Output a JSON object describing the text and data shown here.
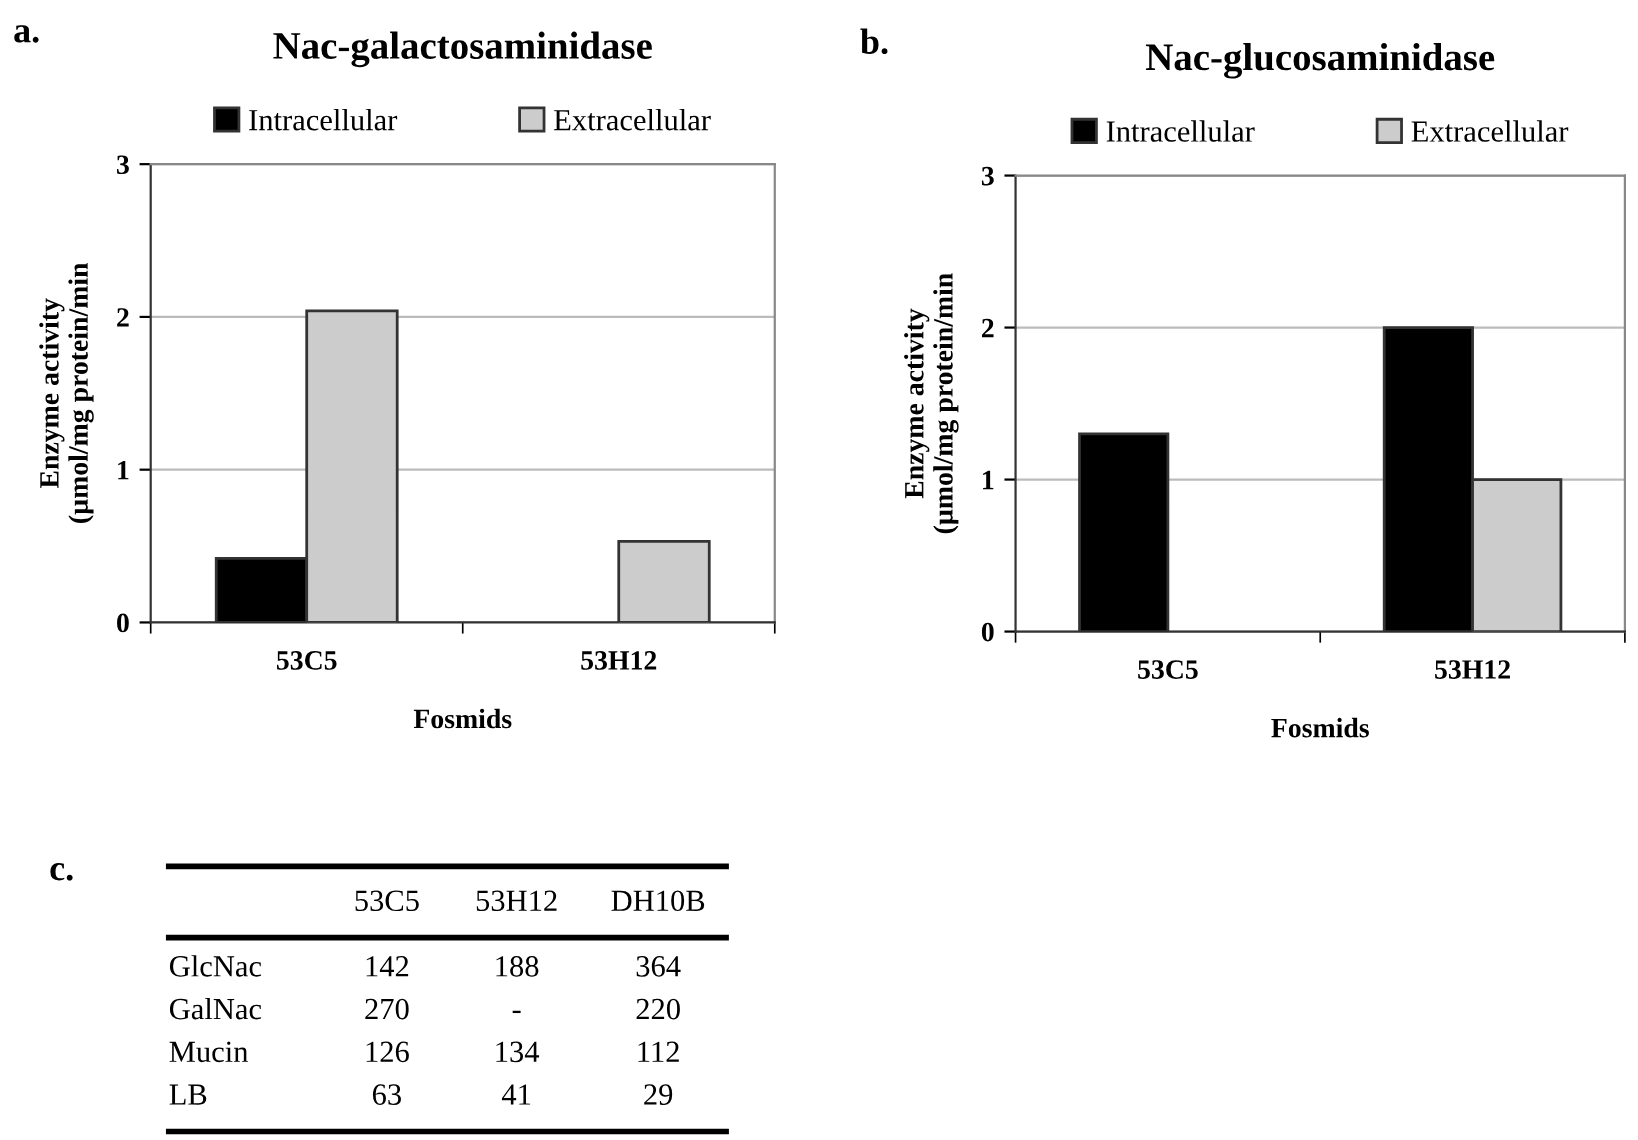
{
  "chart_data": [
    {
      "type": "bar",
      "title": "Nac-galactosaminidase",
      "xlabel": "Fosmids",
      "ylabel": "Enzyme activity\n(µmol/mg protein/min",
      "annotations": [
        "a."
      ],
      "categories": [
        "53C5",
        "53H12"
      ],
      "ylim": [
        0,
        3
      ],
      "yticks": [
        0,
        1,
        2,
        3
      ],
      "grid": "y",
      "legend": "top",
      "series": [
        {
          "name": "Intracellular",
          "color": "#000000",
          "values": [
            0.42,
            null
          ]
        },
        {
          "name": "Extracellular",
          "color": "#cccccc",
          "values": [
            2.04,
            0.53
          ]
        }
      ]
    },
    {
      "type": "bar",
      "title": "Nac-glucosaminidase",
      "xlabel": "Fosmids",
      "ylabel": "Enzyme activity\n(µmol/mg protein/min",
      "annotations": [
        "b."
      ],
      "categories": [
        "53C5",
        "53H12"
      ],
      "ylim": [
        0,
        3
      ],
      "yticks": [
        0,
        1,
        2,
        3
      ],
      "grid": "y",
      "legend": "top",
      "series": [
        {
          "name": "Intracellular",
          "color": "#000000",
          "values": [
            1.3,
            2.0
          ]
        },
        {
          "name": "Extracellular",
          "color": "#cccccc",
          "values": [
            null,
            1.0
          ]
        }
      ]
    },
    {
      "type": "other",
      "annotations": [
        "c."
      ],
      "categories": [
        "53C5",
        "53H12",
        "DH10B"
      ],
      "y_categories": [
        "GlcNac",
        "GalNac",
        "Mucin",
        "LB"
      ],
      "cell_labels": [
        [
          "142",
          "188",
          "364"
        ],
        [
          "270",
          "-",
          "220"
        ],
        [
          "126",
          "134",
          "112"
        ],
        [
          "63",
          "41",
          "29"
        ]
      ]
    }
  ]
}
